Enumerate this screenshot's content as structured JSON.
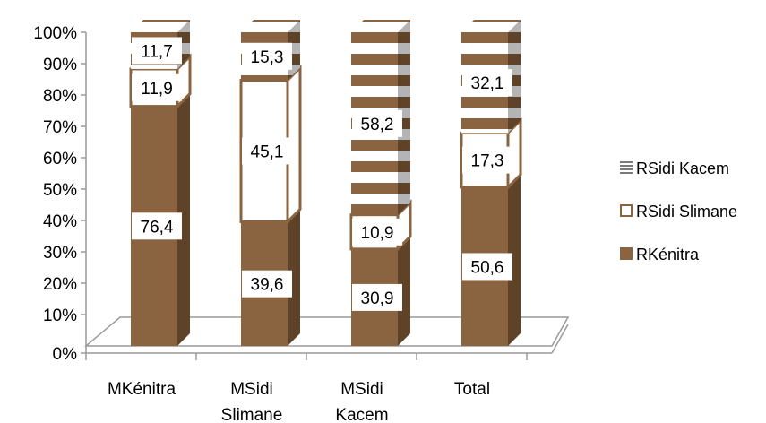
{
  "chart_data": {
    "type": "bar",
    "stacked": "100%",
    "three_d": true,
    "categories": [
      [
        "MKénitra"
      ],
      [
        "MSidi",
        "Slimane"
      ],
      [
        "MSidi",
        "Kacem"
      ],
      [
        "Total"
      ]
    ],
    "series": [
      {
        "name": "RKénitra",
        "values": [
          76.4,
          39.6,
          30.9,
          50.6
        ],
        "labels": [
          "76,4",
          "39,6",
          "30,9",
          "50,6"
        ],
        "pattern": "solid"
      },
      {
        "name": "RSidi Slimane",
        "values": [
          11.9,
          45.1,
          10.9,
          17.3
        ],
        "labels": [
          "11,9",
          "45,1",
          "10,9",
          "17,3"
        ],
        "pattern": "outline"
      },
      {
        "name": "RSidi Kacem",
        "values": [
          11.7,
          15.3,
          58.2,
          32.1
        ],
        "labels": [
          "11,7",
          "15,3",
          "58,2",
          "32,1"
        ],
        "pattern": "horizontal-stripes"
      }
    ],
    "ylim": [
      0,
      100
    ],
    "yticks": [
      "0%",
      "10%",
      "20%",
      "30%",
      "40%",
      "50%",
      "60%",
      "70%",
      "80%",
      "90%",
      "100%"
    ],
    "grid": false,
    "legend": "right",
    "colors": {
      "bar": "#8a6440",
      "bar_side": "#5f4328",
      "bar_top": "#a88361",
      "outline": "#8a6440",
      "stripe_light": "#ffffff",
      "floor": "#9a9a9a"
    }
  }
}
